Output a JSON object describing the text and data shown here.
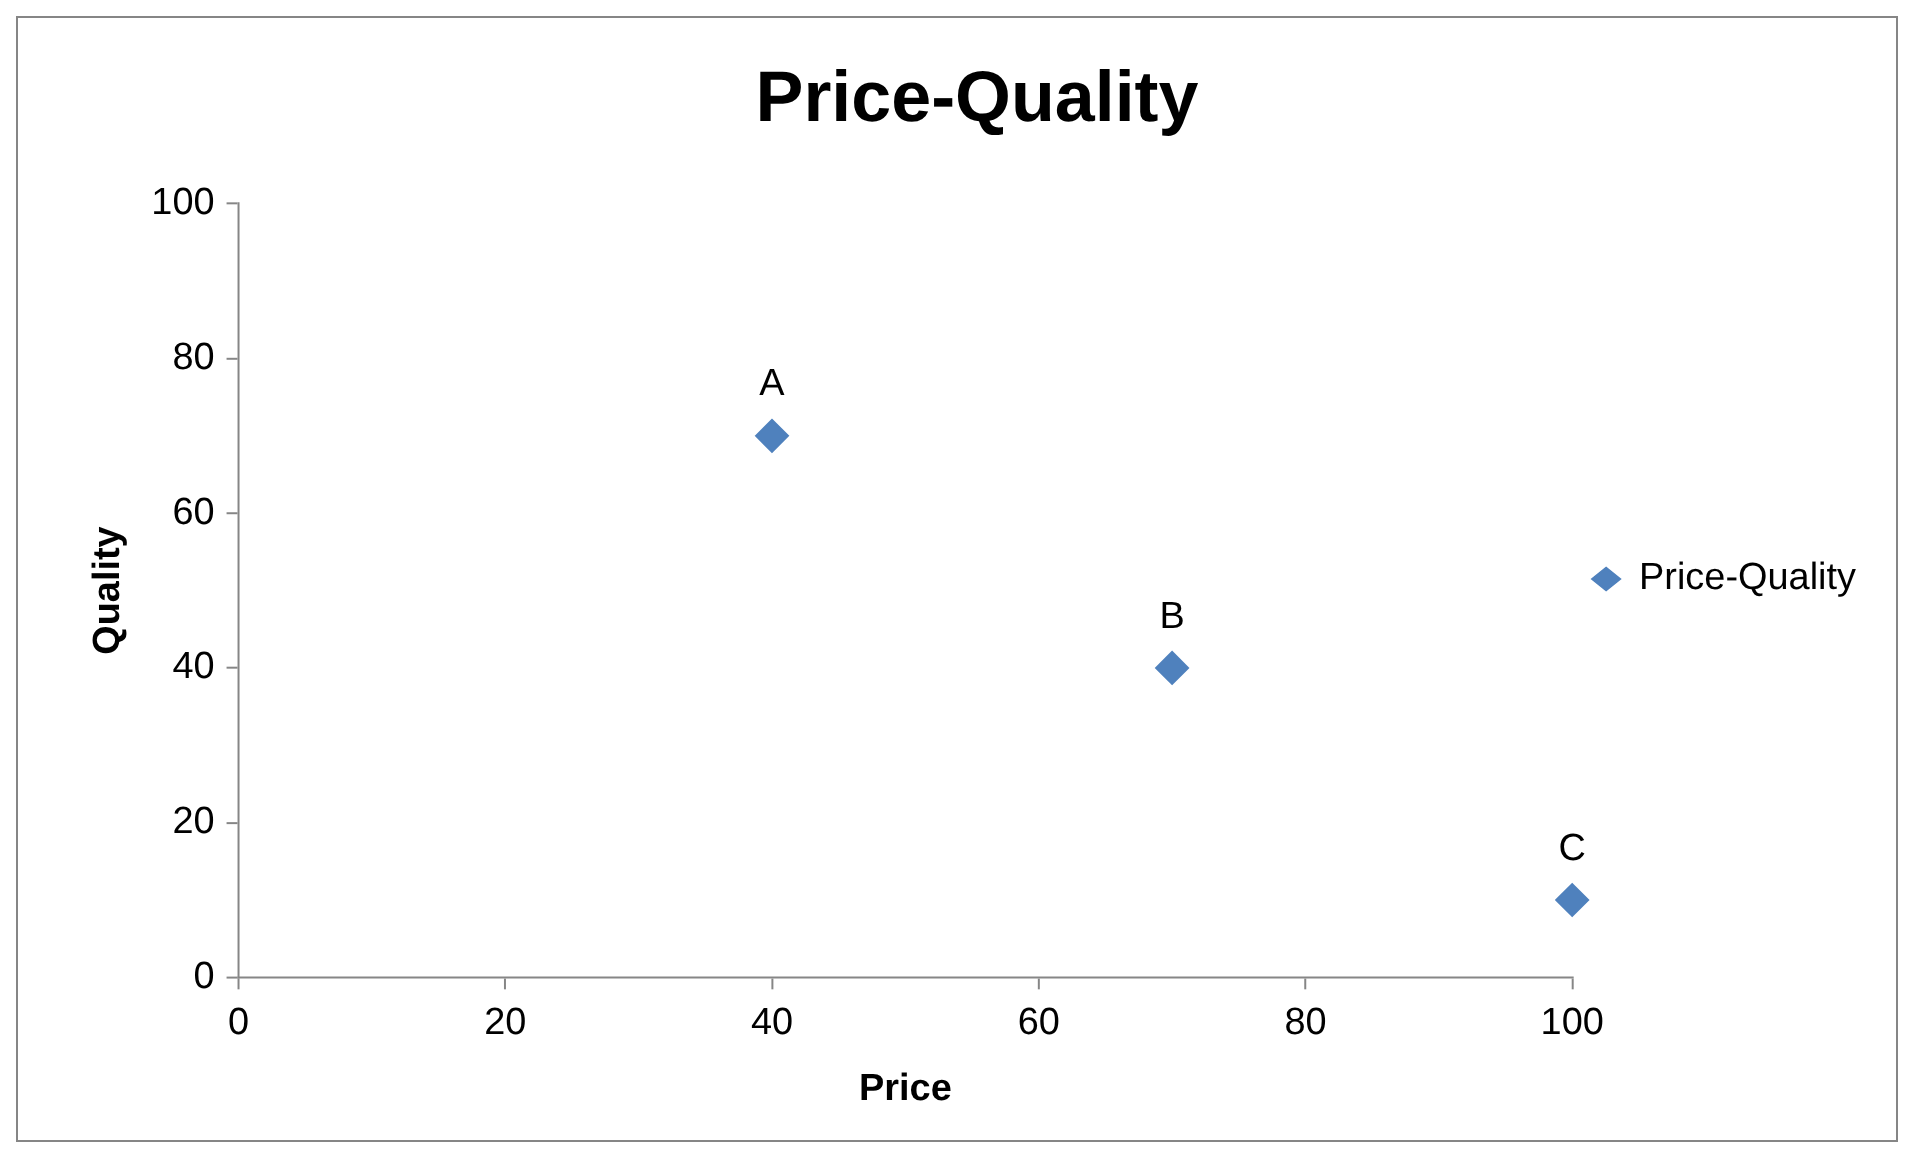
{
  "chart_data": {
    "type": "scatter",
    "title": "Price-Quality",
    "xlabel": "Price",
    "ylabel": "Quality",
    "x": [
      40,
      70,
      100
    ],
    "series": [
      {
        "name": "Price-Quality",
        "color": "#4f81bd",
        "values": [
          70,
          40,
          10
        ]
      }
    ],
    "xlim": [
      0,
      100
    ],
    "xticks": [
      0,
      20,
      40,
      60,
      80,
      100
    ],
    "ylim": [
      0,
      100
    ],
    "yticks": [
      0,
      20,
      40,
      60,
      80,
      100
    ],
    "annotations": [
      {
        "text": "A",
        "x": 40,
        "y": 70
      },
      {
        "text": "B",
        "x": 70,
        "y": 40
      },
      {
        "text": "C",
        "x": 100,
        "y": 10
      }
    ],
    "grid": false,
    "legend": "right",
    "marker": "diamond"
  }
}
